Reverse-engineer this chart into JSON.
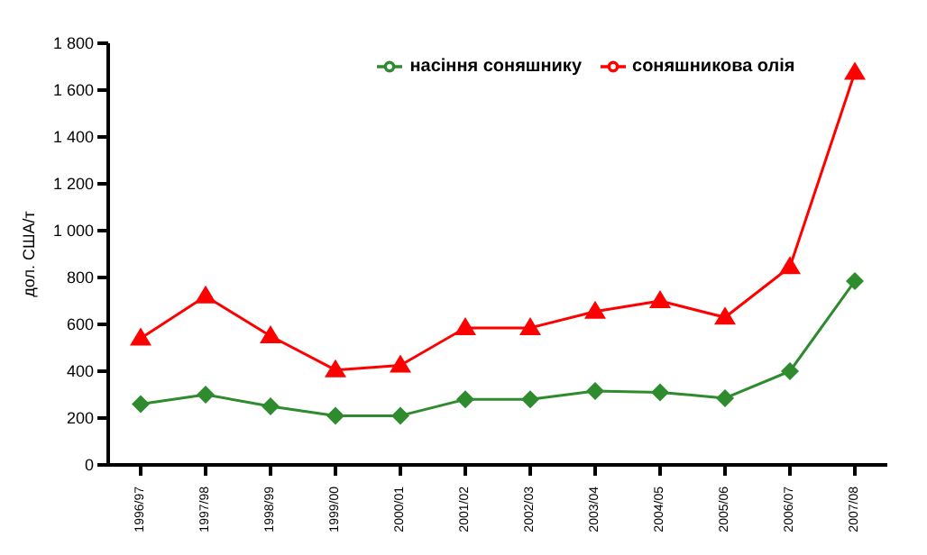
{
  "chart_data": {
    "type": "line",
    "ylabel": "дол. США/т",
    "categories": [
      "1996/97",
      "1997/98",
      "1998/99",
      "1999/00",
      "2000/01",
      "2001/02",
      "2002/03",
      "2003/04",
      "2004/05",
      "2005/06",
      "2006/07",
      "2007/08"
    ],
    "series": [
      {
        "name": "насіння соняшнику",
        "color": "#2e8b2e",
        "marker": "diamond",
        "values": [
          260,
          300,
          250,
          210,
          210,
          280,
          280,
          315,
          310,
          285,
          400,
          785
        ]
      },
      {
        "name": "соняшникова олія",
        "color": "#ff0000",
        "marker": "triangle",
        "values": [
          540,
          720,
          550,
          405,
          425,
          585,
          585,
          655,
          700,
          630,
          845,
          1675
        ]
      }
    ],
    "ylim": [
      0,
      1800
    ],
    "yticks": [
      0,
      200,
      400,
      600,
      800,
      {
        "value": 1000,
        "label": "1 000"
      },
      {
        "value": 1200,
        "label": "1 200"
      },
      {
        "value": 1400,
        "label": "1 400"
      },
      {
        "value": 1600,
        "label": "1 600"
      },
      {
        "value": 1800,
        "label": "1 800"
      }
    ],
    "legend": "top"
  }
}
